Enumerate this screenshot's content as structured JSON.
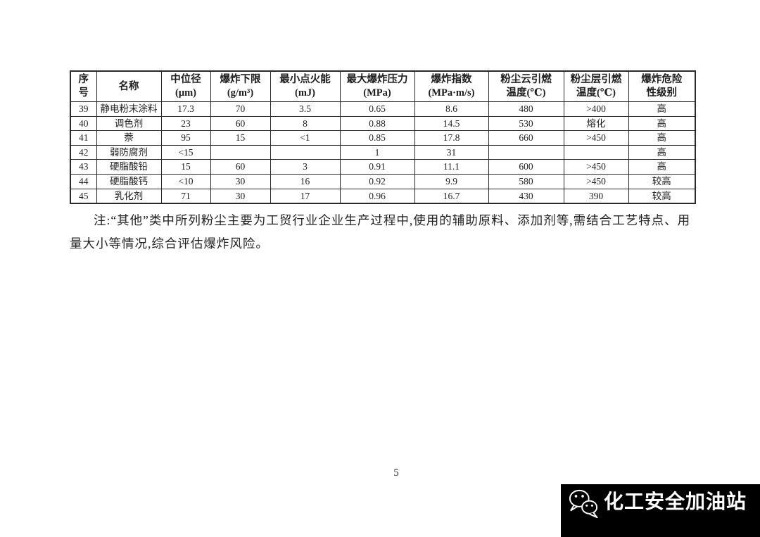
{
  "table": {
    "headers": [
      [
        "序",
        "号"
      ],
      [
        "名称"
      ],
      [
        "中位径",
        "(μm)"
      ],
      [
        "爆炸下限",
        "(g/m³)"
      ],
      [
        "最小点火能",
        "(mJ)"
      ],
      [
        "最大爆炸压力",
        "(MPa)"
      ],
      [
        "爆炸指数",
        "(MPa·m/s)"
      ],
      [
        "粉尘云引燃",
        "温度(℃)"
      ],
      [
        "粉尘层引燃",
        "温度(℃)"
      ],
      [
        "爆炸危险",
        "性级别"
      ]
    ],
    "rows": [
      [
        "39",
        "静电粉末涂料",
        "17.3",
        "70",
        "3.5",
        "0.65",
        "8.6",
        "480",
        ">400",
        "高"
      ],
      [
        "40",
        "调色剂",
        "23",
        "60",
        "8",
        "0.88",
        "14.5",
        "530",
        "熔化",
        "高"
      ],
      [
        "41",
        "萘",
        "95",
        "15",
        "<1",
        "0.85",
        "17.8",
        "660",
        ">450",
        "高"
      ],
      [
        "42",
        "弱防腐剂",
        "<15",
        "",
        "",
        "1",
        "31",
        "",
        "",
        "高"
      ],
      [
        "43",
        "硬脂酸铅",
        "15",
        "60",
        "3",
        "0.91",
        "11.1",
        "600",
        ">450",
        "高"
      ],
      [
        "44",
        "硬脂酸钙",
        "<10",
        "30",
        "16",
        "0.92",
        "9.9",
        "580",
        ">450",
        "较高"
      ],
      [
        "45",
        "乳化剂",
        "71",
        "30",
        "17",
        "0.96",
        "16.7",
        "430",
        "390",
        "较高"
      ]
    ]
  },
  "note": {
    "text": "注:“其他”类中所列粉尘主要为工贸行业企业生产过程中,使用的辅助原料、添加剂等,需结合工艺特点、用量大小等情况,综合评估爆炸风险。"
  },
  "footer": {
    "page_number": "5"
  },
  "watermark": {
    "label": "化工安全加油站",
    "icon": "wechat-icon",
    "bg_color": "#000000",
    "text_color": "#ffffff"
  }
}
